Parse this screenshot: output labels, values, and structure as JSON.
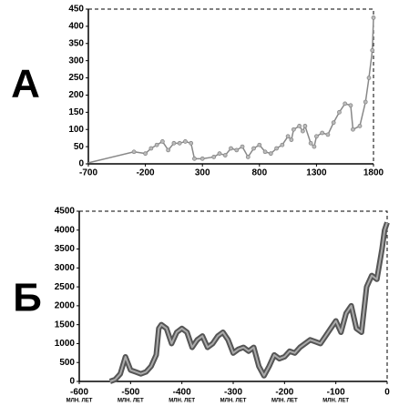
{
  "chart_data": [
    {
      "type": "line",
      "annotation": "А",
      "color": "#888888",
      "markers": true,
      "x": [
        -700,
        -300,
        -200,
        -150,
        -100,
        -50,
        0,
        50,
        100,
        150,
        200,
        230,
        300,
        400,
        450,
        500,
        550,
        600,
        650,
        700,
        750,
        800,
        850,
        900,
        950,
        1000,
        1050,
        1080,
        1100,
        1150,
        1180,
        1200,
        1250,
        1280,
        1300,
        1350,
        1400,
        1450,
        1500,
        1550,
        1600,
        1620,
        1680,
        1730,
        1760,
        1790,
        1800
      ],
      "values": [
        3,
        35,
        30,
        45,
        55,
        65,
        40,
        60,
        60,
        65,
        60,
        15,
        15,
        20,
        30,
        25,
        45,
        40,
        50,
        20,
        45,
        55,
        35,
        30,
        45,
        55,
        80,
        70,
        100,
        110,
        95,
        110,
        60,
        50,
        80,
        90,
        85,
        120,
        150,
        175,
        170,
        100,
        110,
        180,
        250,
        330,
        425
      ],
      "xlim": [
        -700,
        1800
      ],
      "xticks": [
        -700,
        -200,
        300,
        800,
        1300,
        1800
      ],
      "ylim": [
        0,
        450
      ],
      "yticks": [
        0,
        50,
        100,
        150,
        200,
        250,
        300,
        350,
        400,
        450
      ]
    },
    {
      "type": "line",
      "annotation": "Б",
      "color": "#555555",
      "markers": false,
      "x": [
        -540,
        -530,
        -520,
        -510,
        -500,
        -490,
        -480,
        -470,
        -460,
        -450,
        -445,
        -440,
        -430,
        -420,
        -410,
        -400,
        -390,
        -380,
        -370,
        -360,
        -350,
        -340,
        -330,
        -320,
        -310,
        -300,
        -290,
        -280,
        -270,
        -260,
        -250,
        -240,
        -230,
        -220,
        -210,
        -200,
        -190,
        -180,
        -170,
        -160,
        -150,
        -140,
        -130,
        -120,
        -110,
        -100,
        -90,
        -80,
        -70,
        -60,
        -50,
        -40,
        -30,
        -20,
        -10,
        -5,
        0
      ],
      "values": [
        0,
        50,
        200,
        650,
        300,
        250,
        200,
        250,
        400,
        700,
        1400,
        1500,
        1400,
        1000,
        1300,
        1400,
        1300,
        900,
        1100,
        1200,
        900,
        1000,
        1200,
        1300,
        1100,
        750,
        850,
        900,
        800,
        900,
        400,
        150,
        400,
        700,
        600,
        650,
        800,
        750,
        900,
        1000,
        1100,
        1050,
        1000,
        1200,
        1400,
        1600,
        1300,
        1800,
        2000,
        1400,
        1300,
        2500,
        2800,
        2700,
        3500,
        4000,
        4200
      ],
      "xlim": [
        -600,
        0
      ],
      "xticks": [
        -600,
        -500,
        -400,
        -300,
        -200,
        -100,
        0
      ],
      "xtick_units": [
        "МЛН. ЛЕТ",
        "МЛН. ЛЕТ",
        "МЛН. ЛЕТ",
        "МЛН. ЛЕТ",
        "МЛН. ЛЕТ",
        "МЛН. ЛЕТ",
        null
      ],
      "ylim": [
        0,
        4500
      ],
      "yticks": [
        0,
        500,
        1000,
        1500,
        2000,
        2500,
        3000,
        3500,
        4000,
        4500
      ]
    }
  ]
}
